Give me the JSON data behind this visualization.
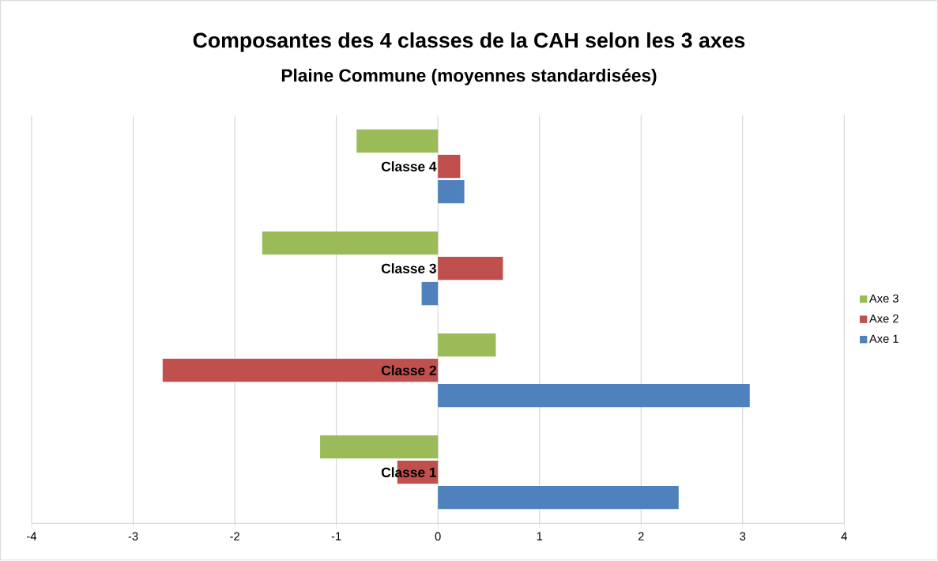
{
  "chart_data": {
    "type": "bar",
    "orientation": "horizontal",
    "title": "Composantes des 4 classes de la CAH selon les 3 axes",
    "subtitle": "Plaine Commune (moyennes standardisées)",
    "categories": [
      "Classe 4",
      "Classe 3",
      "Classe 2",
      "Classe 1"
    ],
    "series": [
      {
        "name": "Axe 1",
        "color": "#4f81bd",
        "values": [
          0.26,
          -0.16,
          3.07,
          2.37
        ]
      },
      {
        "name": "Axe 2",
        "color": "#c0504d",
        "values": [
          0.22,
          0.64,
          -2.71,
          -0.4
        ]
      },
      {
        "name": "Axe 3",
        "color": "#9bbb59",
        "values": [
          -0.8,
          -1.73,
          0.57,
          -1.16
        ]
      }
    ],
    "xlim": [
      -4,
      4
    ],
    "xticks": [
      -4,
      -3,
      -2,
      -1,
      0,
      1,
      2,
      3,
      4
    ],
    "grid": "x",
    "legend": "right"
  }
}
